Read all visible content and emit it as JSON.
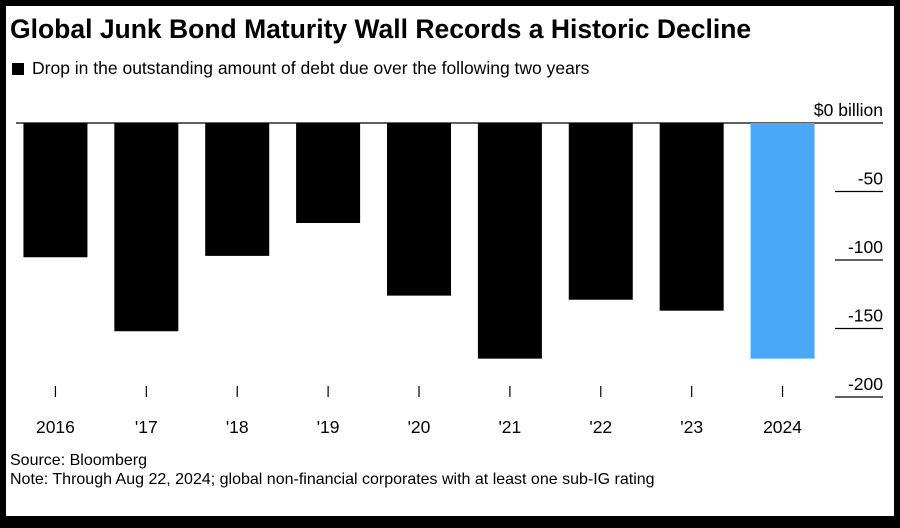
{
  "title": "Global Junk Bond Maturity Wall Records a Historic Decline",
  "chart_data": {
    "type": "bar",
    "legend": [
      {
        "label": "Drop in the outstanding amount of debt due over the following two years",
        "color": "#000000"
      }
    ],
    "categories": [
      "2016",
      "'17",
      "'18",
      "'19",
      "'20",
      "'21",
      "'22",
      "'23",
      "2024"
    ],
    "values": [
      -98,
      -152,
      -97,
      -73,
      -126,
      -172,
      -129,
      -137,
      -172
    ],
    "bar_colors": [
      "#000000",
      "#000000",
      "#000000",
      "#000000",
      "#000000",
      "#000000",
      "#000000",
      "#000000",
      "#4aa8f8"
    ],
    "yticks": [
      {
        "value": 0,
        "label": "$0 billion"
      },
      {
        "value": -50,
        "label": "-50"
      },
      {
        "value": -100,
        "label": "-100"
      },
      {
        "value": -150,
        "label": "-150"
      },
      {
        "value": -200,
        "label": "-200"
      }
    ],
    "ylim": [
      -200,
      0
    ],
    "y_axis_position": "right",
    "grid": false
  },
  "footer": {
    "source": "Source: Bloomberg",
    "note": "Note: Through Aug 22, 2024; global non-financial corporates with at least one sub-IG rating"
  }
}
